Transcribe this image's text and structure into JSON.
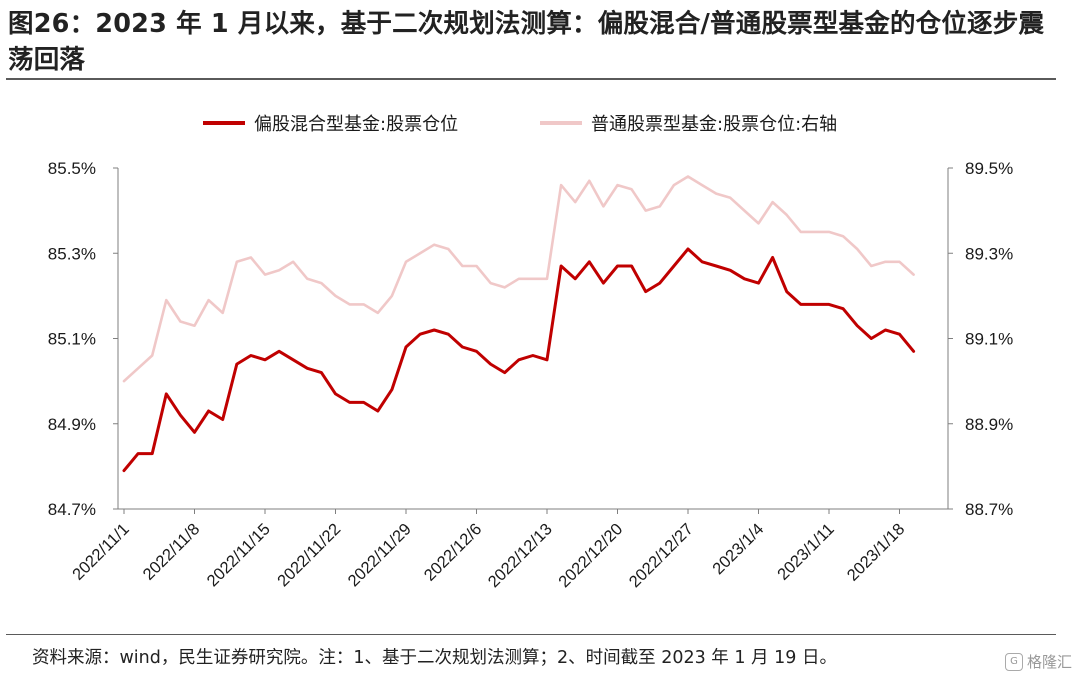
{
  "title": "图26：2023 年 1 月以来，基于二次规划法测算：偏股混合/普通股票型基金的仓位逐步震荡回落",
  "source": "资料来源：wind，民生证券研究院。注：1、基于二次规划法测算；2、时间截至 2023 年 1 月 19 日。",
  "watermark": "格隆汇",
  "watermark_logo": "G",
  "colors": {
    "left_series": "#c00000",
    "right_series": "#f0c8c8",
    "axis": "#7f7f7f"
  },
  "chart_data": {
    "type": "line",
    "legend_position": "top-center",
    "grid": false,
    "x_tick_labels": [
      "2022/11/1",
      "2022/11/8",
      "2022/11/15",
      "2022/11/22",
      "2022/11/29",
      "2022/12/6",
      "2022/12/13",
      "2022/12/20",
      "2022/12/27",
      "2023/1/4",
      "2023/1/11",
      "2023/1/18"
    ],
    "left_axis": {
      "ylim": [
        84.7,
        85.5
      ],
      "ticks": [
        "84.7%",
        "84.9%",
        "85.1%",
        "85.3%",
        "85.5%"
      ]
    },
    "right_axis": {
      "ylim": [
        88.7,
        89.5
      ],
      "ticks": [
        "88.7%",
        "88.9%",
        "89.1%",
        "89.3%",
        "89.5%"
      ]
    },
    "series": [
      {
        "name": "偏股混合型基金:股票仓位",
        "axis": "left",
        "values": [
          84.79,
          84.83,
          84.83,
          84.97,
          84.92,
          84.88,
          84.93,
          84.91,
          85.04,
          85.06,
          85.05,
          85.07,
          85.05,
          85.03,
          85.02,
          84.97,
          84.95,
          84.95,
          84.93,
          84.98,
          85.08,
          85.11,
          85.12,
          85.11,
          85.08,
          85.07,
          85.04,
          85.02,
          85.05,
          85.06,
          85.05,
          85.27,
          85.24,
          85.28,
          85.23,
          85.27,
          85.27,
          85.21,
          85.23,
          85.27,
          85.31,
          85.28,
          85.27,
          85.26,
          85.24,
          85.23,
          85.29,
          85.21,
          85.18,
          85.18,
          85.18,
          85.17,
          85.13,
          85.1,
          85.12,
          85.11,
          85.07
        ]
      },
      {
        "name": "普通股票型基金:股票仓位:右轴",
        "axis": "right",
        "values": [
          89.0,
          89.03,
          89.06,
          89.19,
          89.14,
          89.13,
          89.19,
          89.16,
          89.28,
          89.29,
          89.25,
          89.26,
          89.28,
          89.24,
          89.23,
          89.2,
          89.18,
          89.18,
          89.16,
          89.2,
          89.28,
          89.3,
          89.32,
          89.31,
          89.27,
          89.27,
          89.23,
          89.22,
          89.24,
          89.24,
          89.24,
          89.46,
          89.42,
          89.47,
          89.41,
          89.46,
          89.45,
          89.4,
          89.41,
          89.46,
          89.48,
          89.46,
          89.44,
          89.43,
          89.4,
          89.37,
          89.42,
          89.39,
          89.35,
          89.35,
          89.35,
          89.34,
          89.31,
          89.27,
          89.28,
          89.28,
          89.25
        ]
      }
    ]
  }
}
